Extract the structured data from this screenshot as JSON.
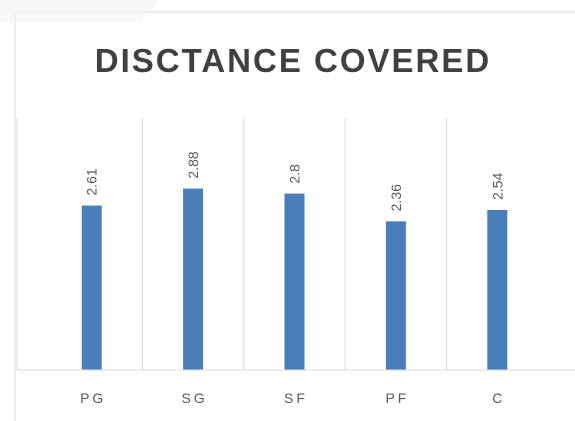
{
  "chart_data": {
    "type": "bar",
    "title": "DISCTANCE COVERED",
    "categories": [
      "PG",
      "SG",
      "SF",
      "PF",
      "C"
    ],
    "values": [
      2.61,
      2.88,
      2.8,
      2.36,
      2.54
    ],
    "color": "#4a7ebb",
    "ylim": [
      0,
      4
    ]
  }
}
